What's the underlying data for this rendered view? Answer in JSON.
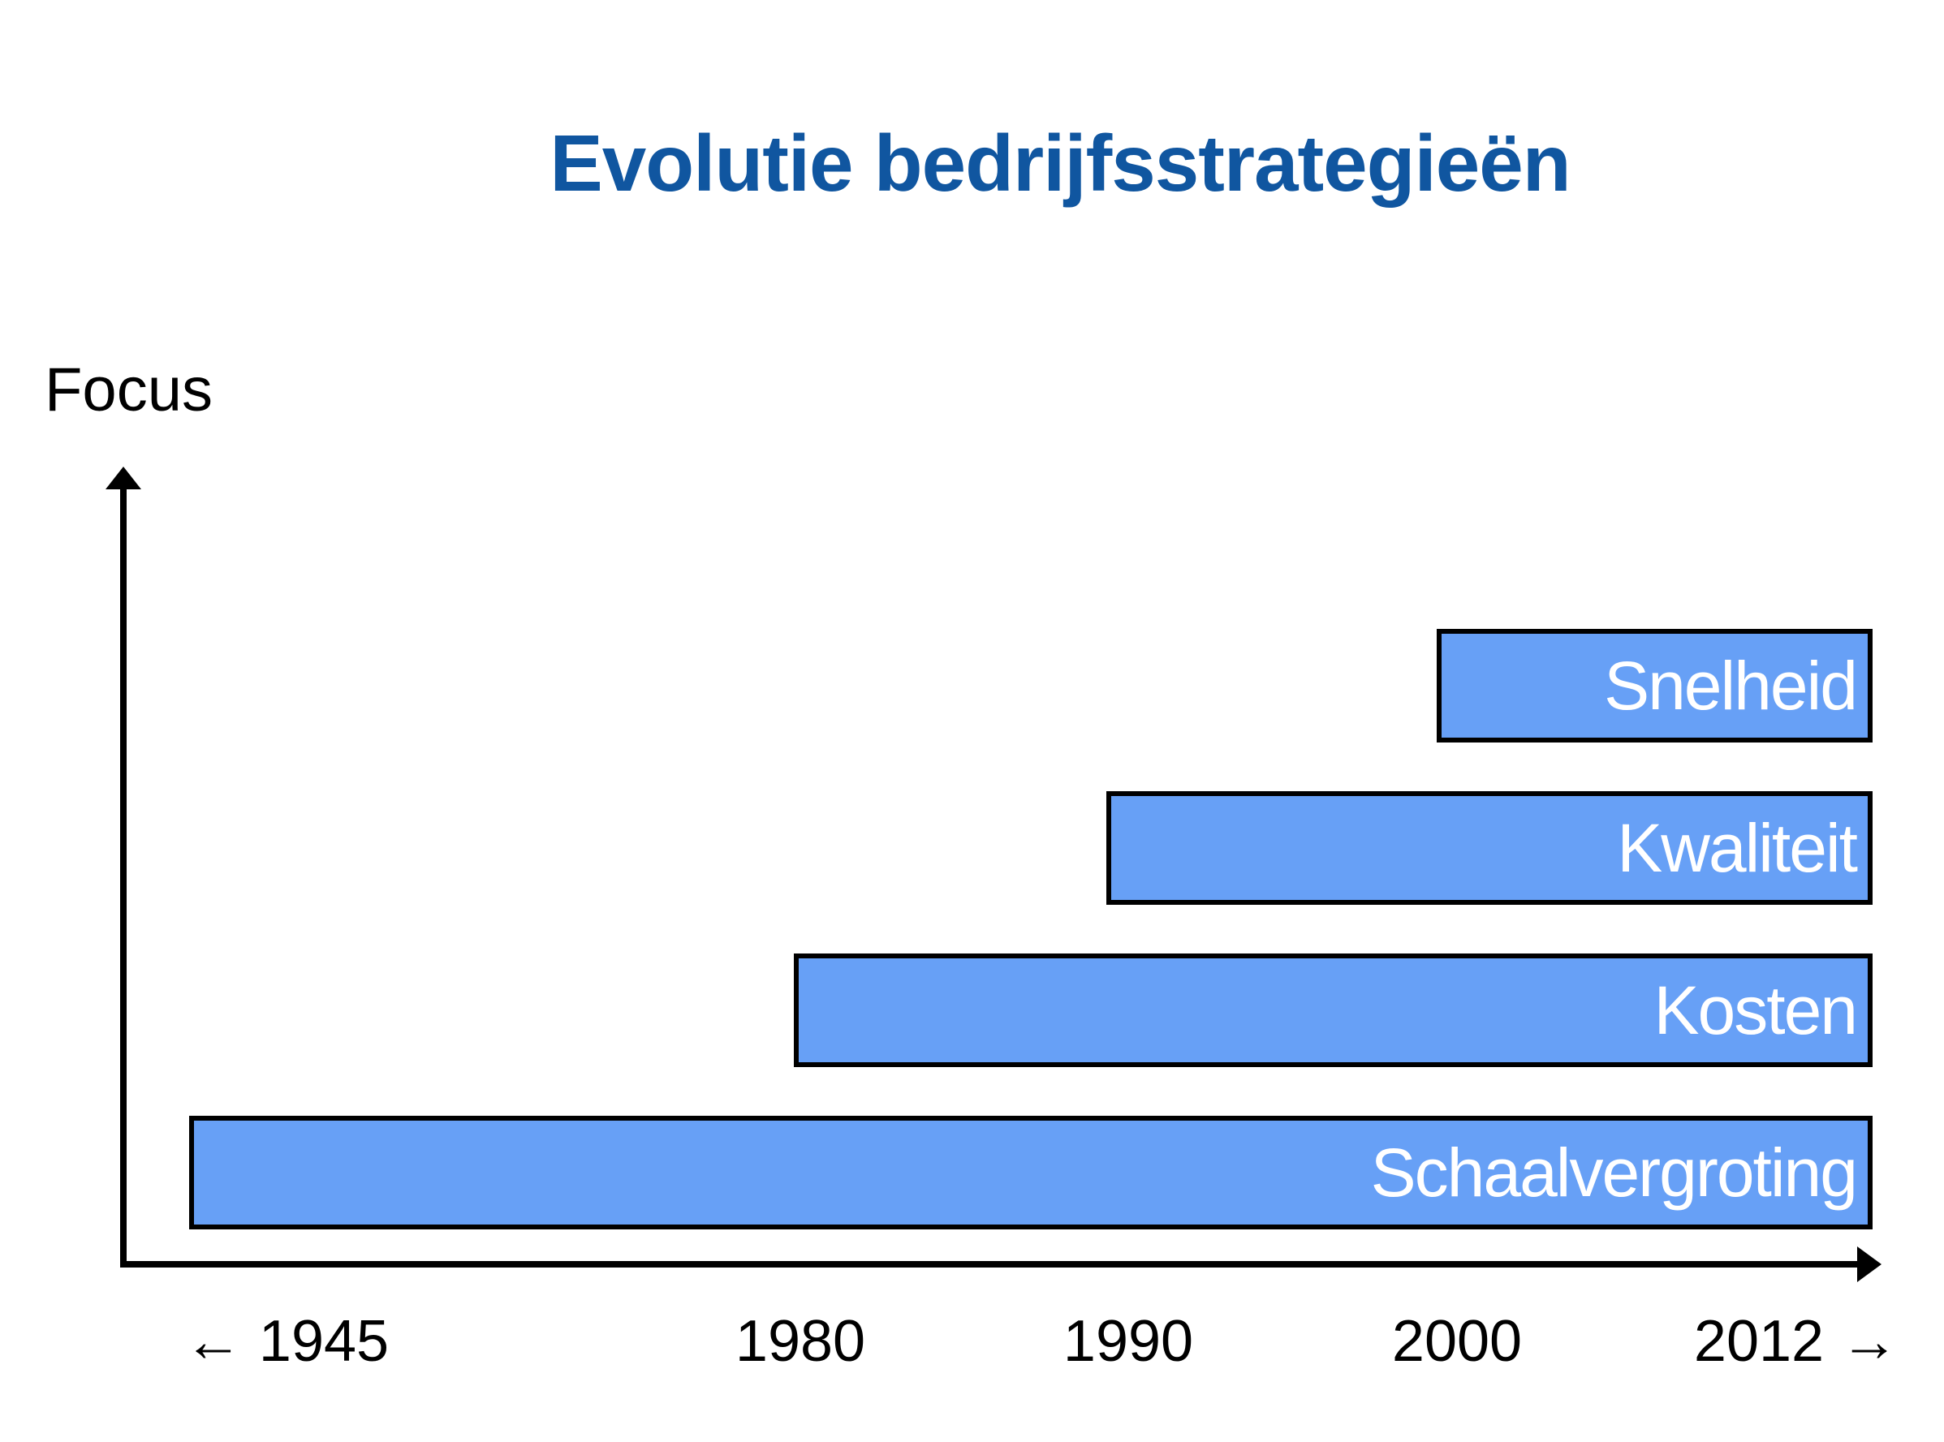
{
  "slide": {
    "title": "Evolutie bedrijfsstrategieën",
    "y_axis_label": "Focus"
  },
  "chart_data": {
    "type": "bar",
    "orientation": "horizontal_timeline",
    "title": "Evolutie bedrijfsstrategieën",
    "ylabel": "Focus",
    "xlabel": "",
    "x_tick_labels": [
      "← 1945",
      "1980",
      "1990",
      "2000",
      "2012 →"
    ],
    "x_range": [
      1945,
      2012
    ],
    "grid": false,
    "legend": false,
    "bars": [
      {
        "label": "Snelheid",
        "start_year": 2000,
        "end_year": 2012
      },
      {
        "label": "Kwaliteit",
        "start_year": 1990,
        "end_year": 2012
      },
      {
        "label": "Kosten",
        "start_year": 1980,
        "end_year": 2012
      },
      {
        "label": "Schaalvergroting",
        "start_year": 1945,
        "end_year": 2012
      }
    ],
    "colors": {
      "bar_fill": "#67A0F6",
      "bar_border": "#000000",
      "bar_text": "#FFFFFF",
      "title_text": "#1056A0",
      "axis": "#000000"
    }
  }
}
